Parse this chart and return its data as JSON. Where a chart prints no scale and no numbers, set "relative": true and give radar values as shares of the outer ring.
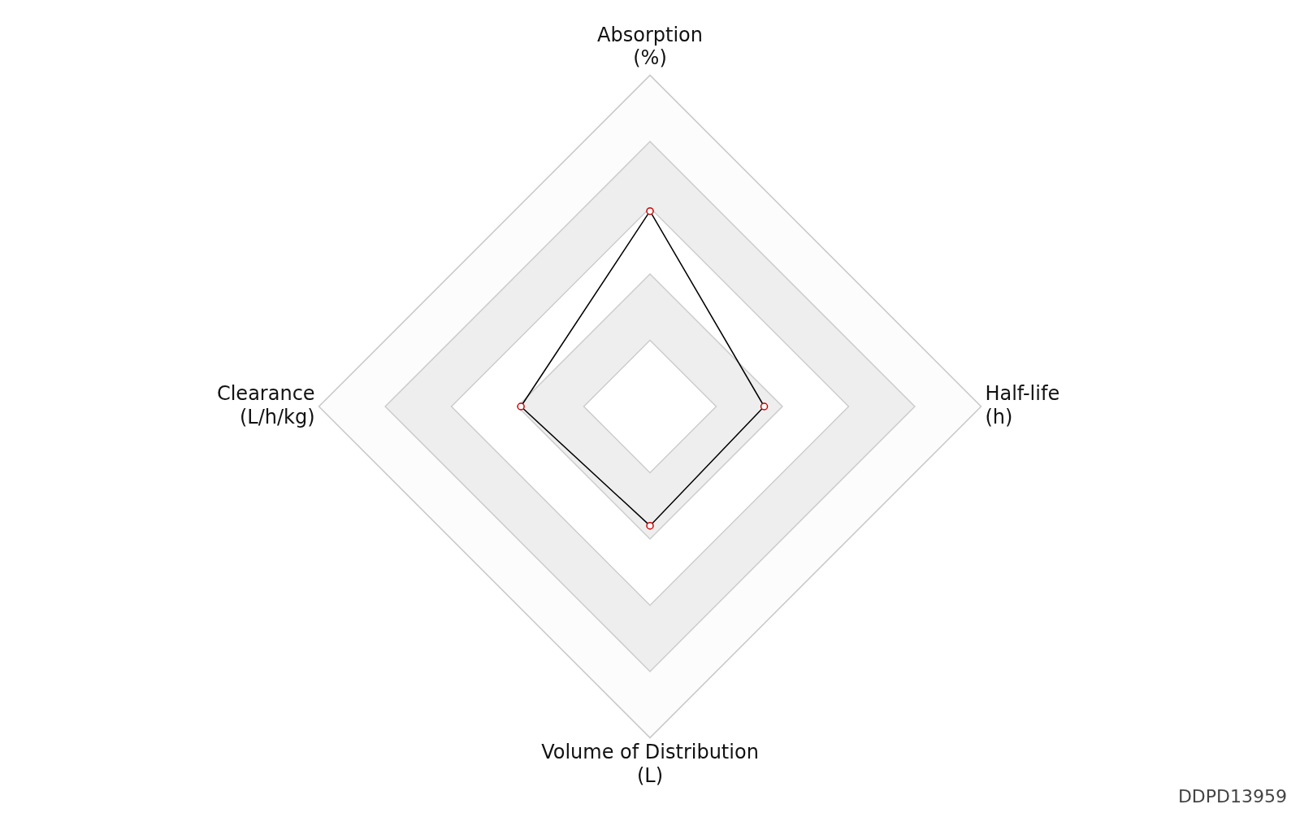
{
  "chart_data": {
    "type": "radar",
    "relative": true,
    "categories": [
      "Absorption (%)",
      "Half-life (h)",
      "Volume of Distribution (L)",
      "Clearance (L/h/kg)"
    ],
    "series": [
      {
        "color": "#000000",
        "values": [
          0.59,
          0.345,
          0.36,
          0.39
        ]
      }
    ],
    "grid": true,
    "legend": false,
    "marker": "circle",
    "annotations": [
      "DDPD13959"
    ]
  }
}
